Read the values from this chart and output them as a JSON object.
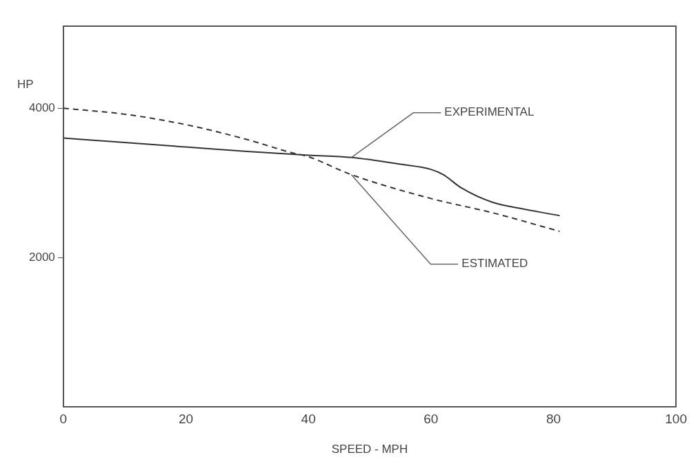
{
  "chart_data": {
    "type": "line",
    "xlabel": "SPEED - MPH",
    "ylabel": "HP",
    "xlim": [
      0,
      100
    ],
    "xticks": [
      0,
      20,
      40,
      60,
      80,
      100
    ],
    "ylim": [
      0,
      5100
    ],
    "yticks": [
      2000,
      4000
    ],
    "grid": false,
    "legend": false,
    "marker": "none",
    "series": [
      {
        "color": "#333333",
        "line_style": "solid",
        "x": [
          0,
          10,
          20,
          30,
          40,
          47,
          55,
          60,
          62,
          65,
          70,
          75,
          81
        ],
        "values": [
          3600,
          3540,
          3480,
          3420,
          3370,
          3340,
          3250,
          3180,
          3110,
          2930,
          2740,
          2650,
          2560
        ]
      },
      {
        "color": "#333333",
        "line_style": "dashed",
        "x": [
          0,
          10,
          20,
          30,
          37,
          40,
          47,
          60,
          70,
          81
        ],
        "values": [
          4000,
          3920,
          3780,
          3580,
          3410,
          3350,
          3110,
          2790,
          2600,
          2350
        ]
      }
    ],
    "annotations": [
      {
        "text": "EXPERIMENTAL",
        "x": 47,
        "y": 3340
      },
      {
        "text": "ESTIMATED",
        "x": 47,
        "y": 3110
      }
    ]
  }
}
